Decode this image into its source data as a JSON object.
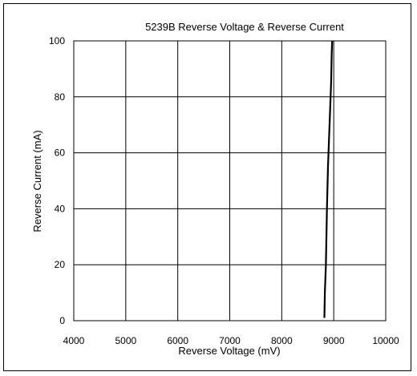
{
  "chart_data": {
    "type": "line",
    "title": "5239B Reverse Voltage & Reverse Current",
    "xlabel": "Reverse Voltage (mV)",
    "ylabel": "Reverse Current (mA)",
    "xlim": [
      4000,
      10000
    ],
    "ylim": [
      0,
      100
    ],
    "x_ticks": [
      4000,
      5000,
      6000,
      7000,
      8000,
      9000,
      10000
    ],
    "y_ticks": [
      0,
      20,
      40,
      60,
      80,
      100
    ],
    "grid": true,
    "legend": "none",
    "series": [
      {
        "x": [
          8820,
          8830,
          8850,
          8870,
          8890,
          8910,
          8930,
          8950,
          8960,
          8970
        ],
        "y": [
          1,
          10,
          20,
          40,
          55,
          65,
          75,
          85,
          95,
          100
        ],
        "color": "#000000"
      }
    ]
  }
}
